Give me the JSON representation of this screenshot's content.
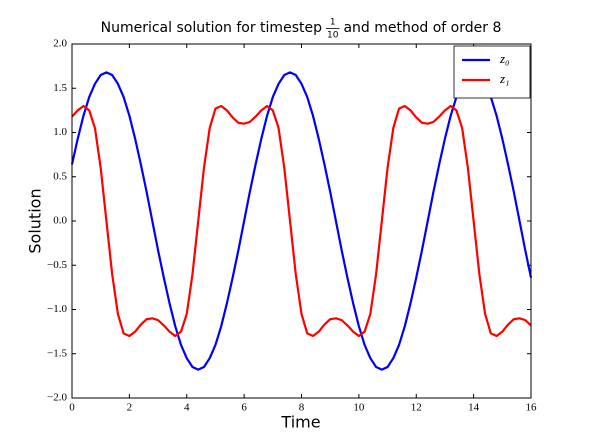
{
  "chart_data": {
    "type": "line",
    "title": {
      "before": "Numerical solution for timestep",
      "fraction": {
        "numerator": "1",
        "denominator": "10"
      },
      "after": "and method of order 8"
    },
    "x_label": "Time",
    "y_label": "Solution",
    "xlim": [
      0,
      16
    ],
    "xticks": [
      0,
      2,
      4,
      6,
      8,
      10,
      12,
      14,
      16
    ],
    "ylim": [
      -2,
      2
    ],
    "yticks": [
      {
        "value": -2,
        "label": "−2.0"
      },
      {
        "value": -1.5,
        "label": "−1.5"
      },
      {
        "value": -1,
        "label": "−1.0"
      },
      {
        "value": -0.5,
        "label": "−0.5"
      },
      {
        "value": 0,
        "label": "0.0"
      },
      {
        "value": 0.5,
        "label": "0.5"
      },
      {
        "value": 1,
        "label": "1.0"
      },
      {
        "value": 1.5,
        "label": "1.5"
      },
      {
        "value": 2,
        "label": "2.0"
      }
    ],
    "grid": false,
    "legend": "upper-right",
    "x": [
      0,
      0.2,
      0.4,
      0.6,
      0.8,
      1,
      1.2,
      1.4,
      1.6,
      1.8,
      2,
      2.2,
      2.4,
      2.6,
      2.8,
      3,
      3.2,
      3.4,
      3.6,
      3.8,
      4,
      4.2,
      4.4,
      4.6,
      4.8,
      5,
      5.2,
      5.4,
      5.6,
      5.8,
      6,
      6.2,
      6.4,
      6.6,
      6.8,
      7,
      7.2,
      7.4,
      7.6,
      7.8,
      8,
      8.2,
      8.4,
      8.6,
      8.8,
      9,
      9.2,
      9.4,
      9.6,
      9.8,
      10,
      10.2,
      10.4,
      10.6,
      10.8,
      11,
      11.2,
      11.4,
      11.6,
      11.8,
      12,
      12.2,
      12.4,
      12.6,
      12.8,
      13,
      13.2,
      13.4,
      13.6,
      13.8,
      14,
      14.2,
      14.4,
      14.6,
      14.8,
      15,
      15.2,
      15.4,
      15.6,
      15.8,
      16
    ],
    "series": [
      {
        "name": "z₀",
        "color": "#0000ff",
        "values": [
          0.64,
          0.93,
          1.19,
          1.4,
          1.55,
          1.65,
          1.68,
          1.65,
          1.55,
          1.4,
          1.19,
          0.93,
          0.64,
          0.33,
          0,
          -0.33,
          -0.64,
          -0.93,
          -1.19,
          -1.4,
          -1.55,
          -1.65,
          -1.68,
          -1.65,
          -1.55,
          -1.4,
          -1.19,
          -0.93,
          -0.64,
          -0.33,
          0,
          0.33,
          0.64,
          0.93,
          1.19,
          1.4,
          1.55,
          1.65,
          1.68,
          1.65,
          1.55,
          1.4,
          1.19,
          0.93,
          0.64,
          0.33,
          0,
          -0.33,
          -0.64,
          -0.93,
          -1.19,
          -1.4,
          -1.55,
          -1.65,
          -1.68,
          -1.65,
          -1.55,
          -1.4,
          -1.19,
          -0.93,
          -0.64,
          -0.33,
          0,
          0.33,
          0.64,
          0.93,
          1.19,
          1.4,
          1.55,
          1.65,
          1.68,
          1.65,
          1.55,
          1.4,
          1.19,
          0.93,
          0.64,
          0.33,
          0,
          -0.33,
          -0.64
        ]
      },
      {
        "name": "z₁",
        "color": "#ff0000",
        "values": [
          1.18,
          1.25,
          1.3,
          1.25,
          1.05,
          0.6,
          0,
          -0.6,
          -1.05,
          -1.27,
          -1.3,
          -1.25,
          -1.17,
          -1.11,
          -1.1,
          -1.12,
          -1.18,
          -1.25,
          -1.3,
          -1.25,
          -1.05,
          -0.6,
          0,
          0.6,
          1.05,
          1.27,
          1.3,
          1.25,
          1.17,
          1.11,
          1.1,
          1.12,
          1.18,
          1.25,
          1.3,
          1.25,
          1.05,
          0.6,
          0,
          -0.6,
          -1.05,
          -1.27,
          -1.3,
          -1.25,
          -1.17,
          -1.11,
          -1.1,
          -1.12,
          -1.18,
          -1.25,
          -1.3,
          -1.25,
          -1.05,
          -0.6,
          0,
          0.6,
          1.05,
          1.27,
          1.3,
          1.25,
          1.17,
          1.11,
          1.1,
          1.12,
          1.18,
          1.25,
          1.3,
          1.25,
          1.05,
          0.6,
          0,
          -0.6,
          -1.05,
          -1.27,
          -1.3,
          -1.25,
          -1.17,
          -1.11,
          -1.1,
          -1.12,
          -1.18
        ]
      }
    ]
  }
}
